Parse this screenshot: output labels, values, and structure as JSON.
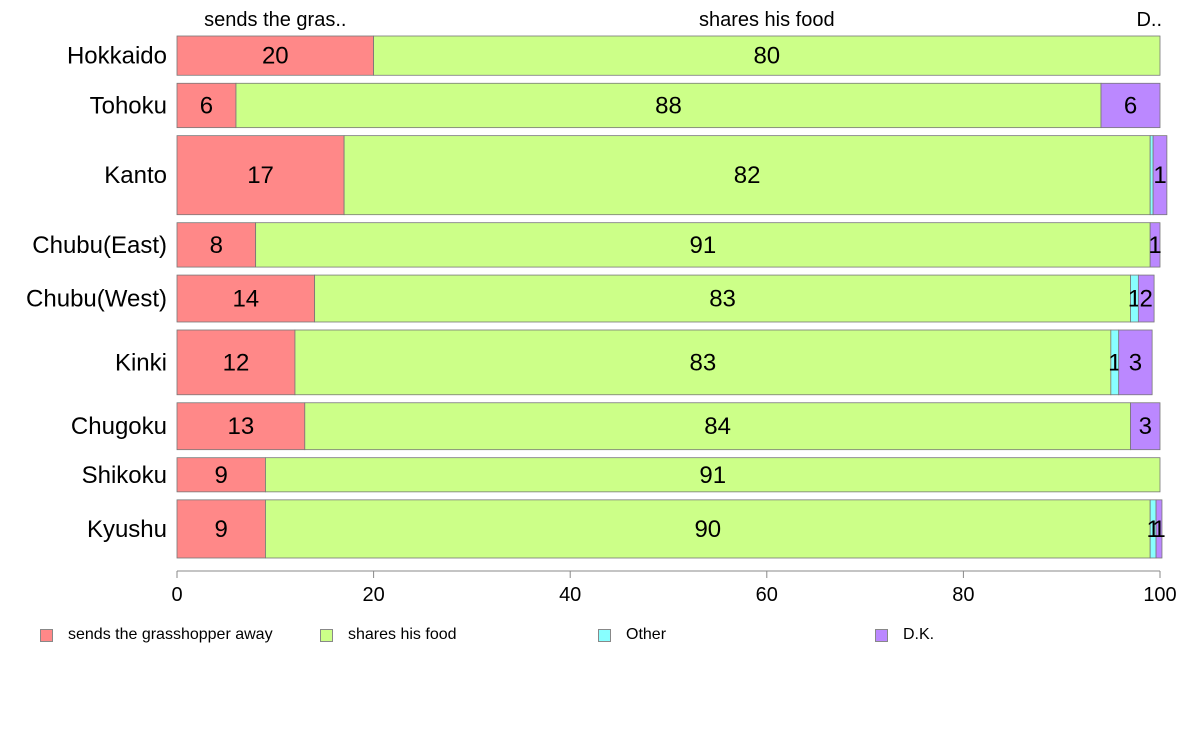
{
  "chart_data": {
    "type": "bar",
    "orientation": "horizontal",
    "stacked": true,
    "categories": [
      "Hokkaido",
      "Tohoku",
      "Kanto",
      "Chubu(East)",
      "Chubu(West)",
      "Kinki",
      "Chugoku",
      "Shikoku",
      "Kyushu"
    ],
    "series": [
      {
        "name": "sends the grasshopper away",
        "color": "#FF8888",
        "values": [
          20,
          6,
          17,
          8,
          14,
          12,
          13,
          9,
          9
        ]
      },
      {
        "name": "shares his food",
        "color": "#CCFF88",
        "values": [
          80,
          88,
          82,
          91,
          83,
          83,
          84,
          91,
          90
        ]
      },
      {
        "name": "Other",
        "color": "#88FFFF",
        "values": [
          0,
          0,
          0.3,
          0,
          0.8,
          0.8,
          0,
          0,
          0.6
        ]
      },
      {
        "name": "D.K.",
        "color": "#BB88FF",
        "values": [
          0,
          6,
          1.4,
          1,
          1.6,
          3.4,
          3,
          0,
          0.6
        ]
      }
    ],
    "data_labels": [
      [
        "20",
        "80",
        "",
        ""
      ],
      [
        "6",
        "88",
        "",
        "6"
      ],
      [
        "17",
        "82",
        "",
        "1"
      ],
      [
        "8",
        "91",
        "",
        "1"
      ],
      [
        "14",
        "83",
        "1",
        "2"
      ],
      [
        "12",
        "83",
        "1",
        "3"
      ],
      [
        "13",
        "84",
        "",
        "3"
      ],
      [
        "9",
        "91",
        "",
        ""
      ],
      [
        "9",
        "90",
        "1",
        "1"
      ]
    ],
    "row_weights": [
      0.77,
      0.87,
      1.55,
      0.87,
      0.92,
      1.27,
      0.92,
      0.67,
      1.14
    ],
    "top_labels": [
      "sends the gras..",
      "shares his food",
      "",
      "D.."
    ],
    "x_ticks": [
      0,
      20,
      40,
      60,
      80,
      100
    ],
    "xlim": [
      0,
      100
    ],
    "title": "",
    "xlabel": "",
    "ylabel": "",
    "grid": false,
    "legend_position": "bottom"
  }
}
